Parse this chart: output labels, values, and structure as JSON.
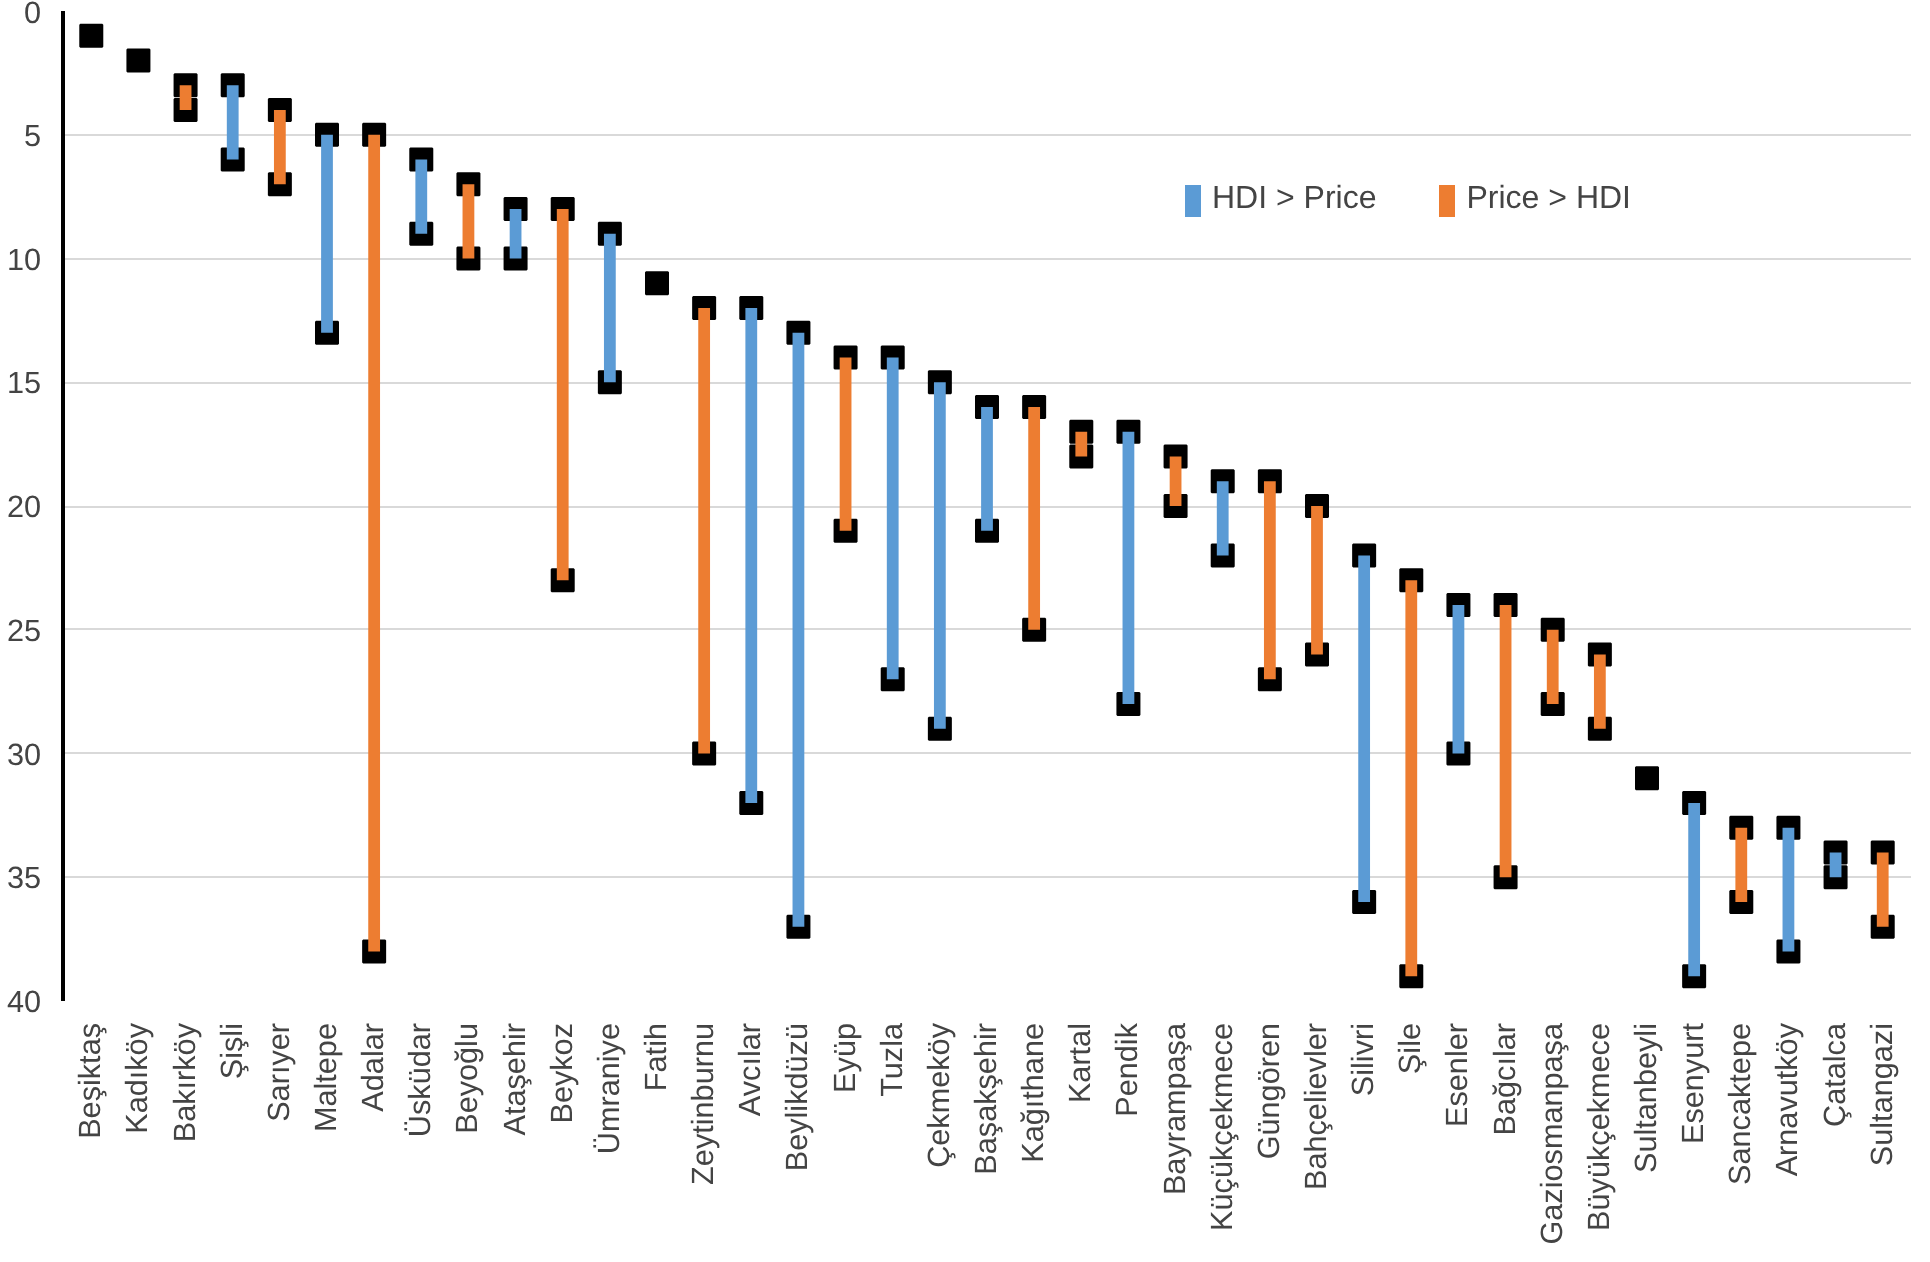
{
  "chart_data": {
    "type": "bar",
    "categories": [
      "Beşiktaş",
      "Kadıköy",
      "Bakırköy",
      "Şişli",
      "Sarıyer",
      "Maltepe",
      "Adalar",
      "Üsküdar",
      "Beyoğlu",
      "Ataşehir",
      "Beykoz",
      "Ümraniye",
      "Fatih",
      "Zeytinburnu",
      "Avcılar",
      "Beylikdüzü",
      "Eyüp",
      "Tuzla",
      "Çekmeköy",
      "Başakşehir",
      "Kağıthane",
      "Kartal",
      "Pendik",
      "Bayrampaşa",
      "Küçükçekmece",
      "Güngören",
      "Bahçelievler",
      "Silivri",
      "Şile",
      "Esenler",
      "Bağcılar",
      "Gaziosmanpaşa",
      "Büyükçekmece",
      "Sultanbeyli",
      "Esenyurt",
      "Sancaktepe",
      "Arnavutköy",
      "Çatalca",
      "Sultangazi"
    ],
    "series": [
      {
        "name": "HDI > Price",
        "color": "#5b9bd5",
        "base": [
          null,
          null,
          null,
          3,
          null,
          5,
          null,
          6,
          null,
          8,
          null,
          9,
          null,
          null,
          12,
          13,
          null,
          14,
          15,
          16,
          null,
          null,
          17,
          null,
          19,
          null,
          null,
          22,
          null,
          24,
          null,
          null,
          null,
          null,
          32,
          null,
          33,
          34,
          null
        ],
        "values": [
          null,
          null,
          null,
          3,
          null,
          8,
          null,
          3,
          null,
          2,
          null,
          6,
          null,
          null,
          20,
          24,
          null,
          13,
          14,
          5,
          null,
          null,
          11,
          null,
          3,
          null,
          null,
          14,
          null,
          6,
          null,
          null,
          null,
          null,
          7,
          null,
          5,
          1,
          null
        ]
      },
      {
        "name": "Price > HDI",
        "color": "#ed7d31",
        "base": [
          null,
          null,
          3,
          null,
          4,
          null,
          5,
          null,
          7,
          null,
          8,
          null,
          null,
          12,
          null,
          null,
          14,
          null,
          null,
          null,
          16,
          17,
          null,
          18,
          null,
          19,
          20,
          null,
          23,
          null,
          24,
          25,
          26,
          null,
          null,
          33,
          null,
          null,
          34
        ],
        "values": [
          null,
          null,
          1,
          null,
          3,
          null,
          33,
          null,
          3,
          null,
          15,
          null,
          null,
          18,
          null,
          null,
          7,
          null,
          null,
          null,
          9,
          1,
          null,
          2,
          null,
          8,
          6,
          null,
          16,
          null,
          11,
          3,
          3,
          null,
          null,
          3,
          null,
          null,
          3
        ]
      },
      {
        "type": "scatter",
        "color": "#000000",
        "values": [
          1,
          2,
          3,
          3,
          4,
          5,
          5,
          6,
          7,
          8,
          8,
          9,
          11,
          12,
          12,
          13,
          14,
          14,
          15,
          16,
          16,
          17,
          17,
          18,
          19,
          19,
          20,
          22,
          23,
          24,
          24,
          25,
          26,
          31,
          32,
          33,
          33,
          34,
          34
        ]
      },
      {
        "type": "scatter",
        "color": "#000000",
        "values": [
          null,
          null,
          4,
          6,
          7,
          13,
          38,
          9,
          10,
          10,
          23,
          15,
          null,
          30,
          32,
          37,
          21,
          27,
          29,
          21,
          25,
          18,
          28,
          20,
          22,
          27,
          26,
          36,
          39,
          30,
          35,
          28,
          29,
          null,
          39,
          36,
          38,
          35,
          37
        ]
      }
    ],
    "ylim": [
      40,
      0
    ],
    "yticks": [
      0,
      5,
      10,
      15,
      20,
      25,
      30,
      35,
      40
    ],
    "grid": "y",
    "legend": "top right",
    "marker": "square"
  }
}
